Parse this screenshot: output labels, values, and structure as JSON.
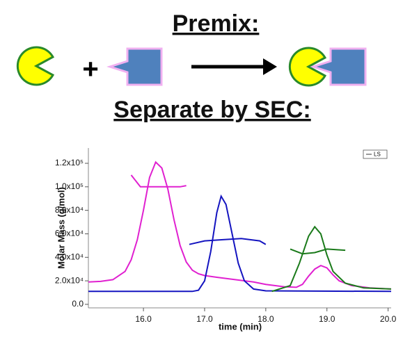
{
  "header": {
    "title": "Premix:",
    "plus": "+",
    "subtitle": "Separate by SEC:"
  },
  "chart_data": {
    "type": "line",
    "x_label": "time (min)",
    "y_label": "Molar Mass (g/mol)",
    "legend_label": "LS",
    "xlim": [
      15.1,
      20.05
    ],
    "ylim": [
      -3000,
      133000
    ],
    "xticks": [
      {
        "value": 16,
        "label": "16.0"
      },
      {
        "value": 17,
        "label": "17.0"
      },
      {
        "value": 18,
        "label": "18.0"
      },
      {
        "value": 19,
        "label": "19.0"
      },
      {
        "value": 20,
        "label": "20.0"
      }
    ],
    "yticks": [
      {
        "value": 0,
        "label": "0.0"
      },
      {
        "value": 20000,
        "label": "2.0x10⁴"
      },
      {
        "value": 40000,
        "label": "4.0x10⁴"
      },
      {
        "value": 60000,
        "label": "6.0x10⁴"
      },
      {
        "value": 80000,
        "label": "8.0x10⁴"
      },
      {
        "value": 100000,
        "label": "1.0x10⁵"
      },
      {
        "value": 120000,
        "label": "1.2x10⁵"
      }
    ],
    "series": [
      {
        "color": "#e020d0",
        "x": [
          15.1,
          15.3,
          15.5,
          15.7,
          15.8,
          15.9,
          16.0,
          16.1,
          16.2,
          16.3,
          16.4,
          16.5,
          16.6,
          16.7,
          16.8,
          16.9,
          17.0,
          17.2,
          17.5,
          17.8,
          18.0,
          18.3,
          18.5,
          18.6,
          18.7,
          18.8,
          18.9,
          19.0,
          19.1,
          19.2,
          19.4,
          19.7,
          20.05
        ],
        "values": [
          19000,
          19500,
          21000,
          28000,
          38000,
          55000,
          80000,
          108000,
          121000,
          116000,
          98000,
          72000,
          50000,
          36000,
          29000,
          26000,
          24500,
          23000,
          21000,
          19000,
          17000,
          15000,
          14500,
          17000,
          24000,
          30000,
          33000,
          31000,
          25000,
          20000,
          16000,
          14000,
          13000
        ]
      },
      {
        "color": "#1414c0",
        "x": [
          15.1,
          16.8,
          16.9,
          17.0,
          17.1,
          17.2,
          17.27,
          17.35,
          17.45,
          17.55,
          17.65,
          17.8,
          18.0,
          20.05
        ],
        "values": [
          11000,
          11000,
          12000,
          20000,
          45000,
          78000,
          92000,
          85000,
          60000,
          35000,
          20000,
          13000,
          11500,
          11000
        ]
      },
      {
        "color": "#1a7a1a",
        "x": [
          18.1,
          18.4,
          18.55,
          18.7,
          18.8,
          18.9,
          19.0,
          19.1,
          19.3,
          19.6,
          20.05
        ],
        "values": [
          11000,
          16000,
          35000,
          58000,
          66000,
          60000,
          42000,
          28000,
          18000,
          14000,
          13000
        ]
      },
      {
        "color": "#e020d0",
        "x": [
          15.8,
          15.95,
          16.2,
          16.4,
          16.6,
          16.7
        ],
        "values": [
          110000,
          100000,
          100000,
          100000,
          100000,
          101000
        ]
      },
      {
        "color": "#1414c0",
        "x": [
          16.75,
          17.0,
          17.3,
          17.6,
          17.9,
          18.0
        ],
        "values": [
          51000,
          54000,
          55000,
          56000,
          54000,
          51000
        ]
      },
      {
        "color": "#1a7a1a",
        "x": [
          18.4,
          18.6,
          18.8,
          19.0,
          19.3
        ],
        "values": [
          47000,
          43000,
          44000,
          47000,
          46000
        ]
      }
    ]
  }
}
